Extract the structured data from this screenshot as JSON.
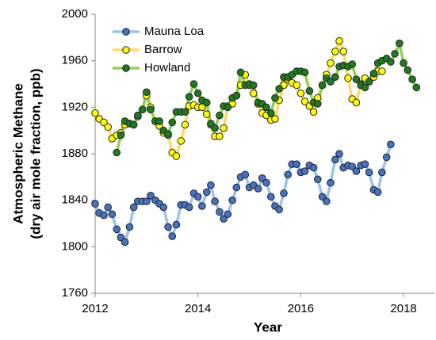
{
  "chart_data": {
    "type": "line",
    "xlabel": "Year",
    "ylabel": [
      "Atmospheric Methane",
      "(dry air mole fraction, ppb)"
    ],
    "xlim": [
      2012,
      2018.6
    ],
    "xticks": [
      2012,
      2014,
      2016,
      2018
    ],
    "ylim": [
      1760,
      2000
    ],
    "yticks": [
      1760,
      1800,
      1840,
      1880,
      1920,
      1960,
      2000
    ],
    "legend": "upper left",
    "series": [
      {
        "name": "Mauna Loa",
        "color": "#9dc3e6",
        "marker_color": "#4472c4",
        "x": [
          2012,
          2012.08,
          2012.17,
          2012.25,
          2012.33,
          2012.42,
          2012.5,
          2012.58,
          2012.67,
          2012.75,
          2012.83,
          2012.92,
          2013,
          2013.08,
          2013.17,
          2013.25,
          2013.33,
          2013.42,
          2013.5,
          2013.58,
          2013.67,
          2013.75,
          2013.83,
          2013.92,
          2014,
          2014.08,
          2014.17,
          2014.25,
          2014.33,
          2014.42,
          2014.5,
          2014.58,
          2014.67,
          2014.75,
          2014.83,
          2014.92,
          2015,
          2015.08,
          2015.17,
          2015.25,
          2015.33,
          2015.42,
          2015.5,
          2015.58,
          2015.67,
          2015.75,
          2015.83,
          2015.92,
          2016,
          2016.08,
          2016.17,
          2016.25,
          2016.33,
          2016.42,
          2016.5,
          2016.58,
          2016.67,
          2016.75,
          2016.83,
          2016.92,
          2017,
          2017.08,
          2017.17,
          2017.25,
          2017.33,
          2017.42,
          2017.5,
          2017.58,
          2017.67,
          2017.75
        ],
        "values": [
          1837,
          1829,
          1827,
          1834,
          1828,
          1815,
          1808,
          1804,
          1817,
          1834,
          1839,
          1839,
          1839,
          1844,
          1840,
          1837,
          1834,
          1817,
          1809,
          1819,
          1836,
          1836,
          1834,
          1846,
          1843,
          1835,
          1847,
          1853,
          1839,
          1830,
          1824,
          1828,
          1840,
          1851,
          1860,
          1862,
          1851,
          1853,
          1850,
          1859,
          1855,
          1843,
          1835,
          1832,
          1846,
          1862,
          1871,
          1871,
          1864,
          1865,
          1870,
          1868,
          1858,
          1843,
          1839,
          1855,
          1875,
          1880,
          1868,
          1870,
          1869,
          1865,
          1870,
          1871,
          1864,
          1849,
          1847,
          1864,
          1877,
          1888
        ]
      },
      {
        "name": "Barrow",
        "color": "#ffd966",
        "marker_color": "#ffff00",
        "x": [
          2012,
          2012.08,
          2012.17,
          2012.25,
          2012.33,
          2012.42,
          2012.5,
          2012.58,
          2012.67,
          2012.75,
          2012.83,
          2012.92,
          2013,
          2013.08,
          2013.17,
          2013.25,
          2013.33,
          2013.42,
          2013.5,
          2013.58,
          2013.67,
          2013.75,
          2013.83,
          2013.92,
          2014,
          2014.08,
          2014.17,
          2014.25,
          2014.33,
          2014.42,
          2014.5,
          2014.58,
          2014.67,
          2014.75,
          2014.83,
          2014.92,
          2015,
          2015.08,
          2015.17,
          2015.25,
          2015.33,
          2015.42,
          2015.5,
          2015.58,
          2015.67,
          2015.75,
          2015.83,
          2015.92,
          2016,
          2016.08,
          2016.17,
          2016.25,
          2016.33,
          2016.42,
          2016.5,
          2016.58,
          2016.67,
          2016.75,
          2016.83,
          2016.92,
          2017,
          2017.08,
          2017.17,
          2017.25,
          2017.33,
          2017.42,
          2017.5,
          2017.58
        ],
        "values": [
          1915,
          1910,
          1907,
          1903,
          1893,
          1896,
          1898,
          1905,
          1906,
          1905,
          1912,
          1918,
          1930,
          1920,
          1908,
          1904,
          1898,
          1896,
          1881,
          1878,
          1891,
          1905,
          1921,
          1922,
          1920,
          1920,
          1914,
          1905,
          1895,
          1895,
          1902,
          1921,
          1923,
          1930,
          1939,
          1948,
          1939,
          1932,
          1923,
          1915,
          1913,
          1909,
          1910,
          1926,
          1939,
          1944,
          1941,
          1939,
          1932,
          1925,
          1921,
          1916,
          1928,
          1939,
          1948,
          1958,
          1968,
          1977,
          1968,
          1945,
          1927,
          1924,
          1940,
          1945,
          1942,
          1946,
          1951,
          1951
        ]
      },
      {
        "name": "Howland",
        "color": "#92d050",
        "marker_color": "#1e7b1e",
        "x": [
          2012.42,
          2012.5,
          2012.58,
          2012.67,
          2012.75,
          2012.83,
          2012.92,
          2013,
          2013.08,
          2013.17,
          2013.25,
          2013.33,
          2013.42,
          2013.5,
          2013.58,
          2013.67,
          2013.75,
          2013.83,
          2013.92,
          2014,
          2014.08,
          2014.17,
          2014.25,
          2014.33,
          2014.42,
          2014.5,
          2014.58,
          2014.67,
          2014.75,
          2014.83,
          2014.92,
          2015,
          2015.08,
          2015.17,
          2015.25,
          2015.33,
          2015.42,
          2015.5,
          2015.58,
          2015.67,
          2015.75,
          2015.83,
          2015.92,
          2016,
          2016.08,
          2016.17,
          2016.25,
          2016.33,
          2016.42,
          2016.5,
          2016.58,
          2016.67,
          2016.75,
          2016.83,
          2016.92,
          2017,
          2017.08,
          2017.17,
          2017.25,
          2017.33,
          2017.42,
          2017.5,
          2017.58,
          2017.67,
          2017.75,
          2017.83,
          2017.92,
          2018,
          2018.08,
          2018.17,
          2018.25
        ],
        "values": [
          1881,
          1896,
          1908,
          1906,
          1905,
          1913,
          1918,
          1933,
          1918,
          1908,
          1908,
          1900,
          1897,
          1907,
          1916,
          1916,
          1916,
          1929,
          1940,
          1932,
          1926,
          1924,
          1906,
          1902,
          1913,
          1921,
          1920,
          1928,
          1930,
          1950,
          1939,
          1940,
          1939,
          1924,
          1923,
          1920,
          1915,
          1928,
          1936,
          1946,
          1946,
          1948,
          1951,
          1951,
          1950,
          1934,
          1924,
          1923,
          1939,
          1945,
          1942,
          1946,
          1955,
          1956,
          1955,
          1957,
          1944,
          1939,
          1937,
          1942,
          1949,
          1958,
          1960,
          1962,
          1959,
          1966,
          1975,
          1958,
          1952,
          1944,
          1937
        ]
      }
    ]
  }
}
